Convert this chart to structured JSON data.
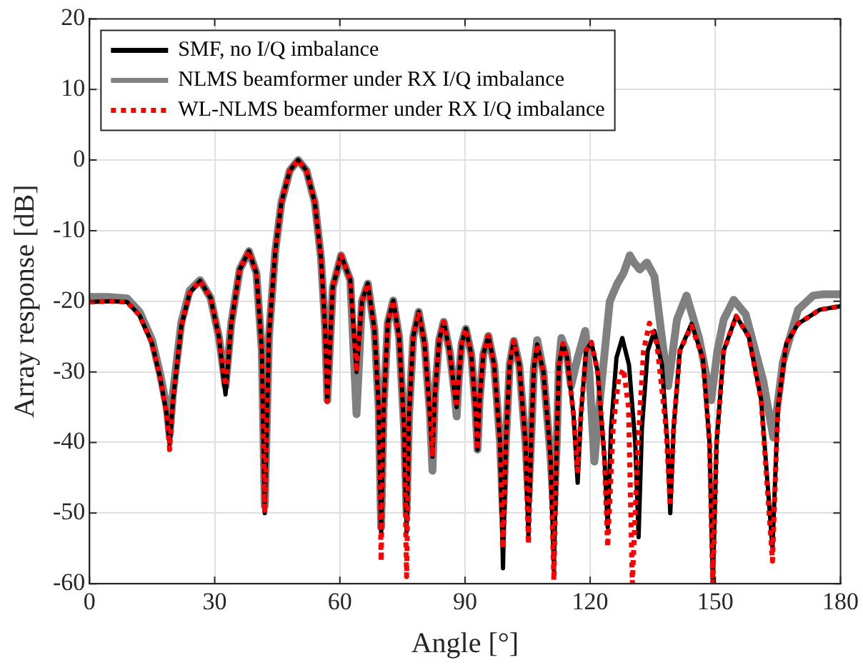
{
  "chart_data": {
    "type": "line",
    "xlabel": "Angle [°]",
    "ylabel": "Array response [dB]",
    "xlim": [
      0,
      180
    ],
    "xticks": [
      0,
      30,
      60,
      90,
      120,
      150,
      180
    ],
    "ylim": [
      -60,
      20
    ],
    "yticks": [
      -60,
      -50,
      -40,
      -30,
      -20,
      -10,
      0,
      10,
      20
    ],
    "grid": true,
    "legend": "top left",
    "marker": "none",
    "series": [
      {
        "name": "SMF, no I/Q imbalance",
        "color": "#000000",
        "line_style": "solid",
        "x": [
          0,
          5,
          9,
          12,
          15,
          17,
          18.5,
          19.2,
          20,
          22,
          24,
          26.5,
          29,
          31,
          32.6,
          34,
          36,
          38.2,
          40,
          41.3,
          42,
          43,
          44.5,
          46,
          48,
          50,
          52,
          54,
          55.5,
          56.5,
          57,
          58.3,
          60.3,
          62.5,
          64,
          65.3,
          66.7,
          68.3,
          69.3,
          69.9,
          70.5,
          71.5,
          72.8,
          74.2,
          75.4,
          76,
          76.6,
          77.6,
          78.9,
          80.3,
          81.6,
          82.2,
          82.8,
          83.8,
          84.9,
          86.3,
          87.5,
          88,
          88.5,
          89.2,
          90.2,
          91.5,
          92.5,
          93,
          93.5,
          94.4,
          95.6,
          97,
          98.4,
          99.1,
          99.8,
          100.7,
          101.7,
          103,
          104.5,
          105.2,
          105.9,
          106.5,
          107.3,
          108.8,
          110.5,
          111.3,
          112,
          112.5,
          113.5,
          114.5,
          116,
          117,
          117.8,
          119,
          120.3,
          121.8,
          123.4,
          124.2,
          125,
          126.3,
          127.7,
          129.3,
          130.8,
          131.6,
          132.4,
          133.8,
          135.4,
          137.2,
          138.5,
          139.2,
          140,
          141.5,
          144.3,
          147,
          148.6,
          149.4,
          150.3,
          152,
          155,
          158,
          161,
          163.7,
          165,
          167,
          169.8,
          175,
          180
        ],
        "values": [
          -20.1,
          -20,
          -20.1,
          -22,
          -26,
          -31,
          -36,
          -40.3,
          -34,
          -23.5,
          -18.8,
          -17.1,
          -19.5,
          -25,
          -33.2,
          -23,
          -15.5,
          -12.9,
          -16,
          -27,
          -50,
          -25,
          -13,
          -6,
          -1.5,
          0,
          -1.5,
          -6,
          -14,
          -24,
          -34.2,
          -18,
          -13.5,
          -17,
          -30,
          -20,
          -17.5,
          -24,
          -35,
          -52.8,
          -35,
          -23,
          -19.9,
          -25,
          -38,
          -52.7,
          -36,
          -25,
          -21.5,
          -26,
          -36,
          -42,
          -33,
          -25.5,
          -22.9,
          -27,
          -33,
          -35,
          -31,
          -26,
          -23.9,
          -27.5,
          -35,
          -41,
          -34,
          -27.5,
          -24.9,
          -29,
          -40,
          -57.8,
          -40,
          -29,
          -25.6,
          -29,
          -40,
          -53.4,
          -39,
          -29.5,
          -26.1,
          -30,
          -42,
          -58,
          -40,
          -29,
          -26,
          -28,
          -36,
          -45.7,
          -36,
          -27,
          -25.8,
          -30,
          -42,
          -52,
          -38,
          -28,
          -25.2,
          -29,
          -40,
          -53.4,
          -38,
          -27,
          -24.2,
          -29,
          -40,
          -50,
          -38,
          -27,
          -23.2,
          -28,
          -40,
          -60,
          -40,
          -27,
          -22.1,
          -25,
          -34,
          -55,
          -35,
          -26,
          -23.2,
          -21.2,
          -20.7
        ]
      },
      {
        "name": "NLMS beamformer under RX I/Q imbalance",
        "color": "#808080",
        "line_style": "solid",
        "x": [
          0,
          5,
          9,
          12,
          15,
          17,
          18.5,
          19.2,
          20,
          22,
          24,
          26.5,
          29,
          31,
          32.6,
          34,
          36,
          38.2,
          40,
          41.3,
          42,
          43,
          44.5,
          46,
          48,
          50,
          52,
          54,
          55.5,
          56.5,
          57,
          58.3,
          60.3,
          62.5,
          64,
          65.3,
          66.7,
          68.3,
          69.3,
          69.9,
          70.5,
          71.5,
          72.8,
          74.2,
          75.4,
          76,
          76.6,
          77.6,
          78.9,
          80.3,
          81.6,
          82.2,
          82.8,
          83.8,
          84.9,
          86.3,
          87.5,
          88,
          88.5,
          89.2,
          90.2,
          91.5,
          92.5,
          93,
          93.5,
          94.4,
          95.6,
          97,
          98.4,
          99.1,
          99.8,
          100.7,
          101.7,
          103,
          104.5,
          105.2,
          105.9,
          106.5,
          107.3,
          108.8,
          110.5,
          111.3,
          112,
          112.5,
          113.1,
          114.3,
          115.4,
          117,
          118.8,
          119.8,
          121,
          122,
          123,
          124.7,
          126.5,
          128,
          129.5,
          130.5,
          131.9,
          133.6,
          135.4,
          137.2,
          138.7,
          140.8,
          143.1,
          146.1,
          149,
          150.5,
          152,
          154.4,
          157.3,
          161.5,
          163.9,
          166.2,
          169.8,
          173.4,
          176,
          180
        ],
        "values": [
          -19.4,
          -19.4,
          -19.6,
          -21.5,
          -25.5,
          -30.5,
          -35,
          -39,
          -33,
          -23,
          -18.5,
          -17,
          -19.5,
          -25,
          -32,
          -23,
          -15.5,
          -12.9,
          -16,
          -27,
          -49,
          -25,
          -13,
          -6,
          -1.5,
          0,
          -1.5,
          -6,
          -14,
          -24,
          -34,
          -18,
          -13.5,
          -17,
          -36,
          -20,
          -17.5,
          -24,
          -35,
          -52,
          -35,
          -23,
          -19.9,
          -25,
          -38,
          -50,
          -36,
          -25,
          -21.5,
          -26,
          -36,
          -44,
          -33,
          -25.5,
          -22.9,
          -27,
          -33,
          -36.3,
          -31,
          -26,
          -23.9,
          -27.5,
          -35,
          -41,
          -34,
          -27.5,
          -24.9,
          -29,
          -40,
          -50,
          -40,
          -29,
          -25.6,
          -29,
          -40,
          -48,
          -39,
          -29.5,
          -25.5,
          -30,
          -42,
          -50,
          -40,
          -29,
          -25.2,
          -27,
          -32,
          -28,
          -24.2,
          -30,
          -42.7,
          -36,
          -30,
          -20,
          -17.5,
          -16,
          -13.5,
          -14.5,
          -15.5,
          -14.5,
          -16.5,
          -25.2,
          -32,
          -22.6,
          -19.2,
          -25.2,
          -34,
          -27,
          -22.6,
          -19.8,
          -21.9,
          -31.3,
          -39.3,
          -28.6,
          -21.2,
          -19.2,
          -19,
          -19
        ]
      },
      {
        "name": "WL-NLMS beamformer under RX I/Q imbalance",
        "color": "#ff0000",
        "line_style": "dotted",
        "x": [
          0,
          5,
          9,
          12,
          15,
          17,
          18.5,
          19.2,
          20,
          22,
          24,
          26.5,
          29,
          31,
          32.6,
          34,
          36,
          38.2,
          40,
          41.3,
          42,
          43,
          44.5,
          46,
          48,
          50,
          52,
          54,
          55.5,
          56.5,
          57,
          58.3,
          60.3,
          62.5,
          64,
          65.3,
          66.7,
          68.3,
          69.3,
          69.9,
          70.5,
          71.5,
          72.8,
          74.2,
          75.4,
          76,
          76.6,
          77.6,
          78.9,
          80.3,
          81.6,
          82.2,
          82.8,
          83.8,
          84.9,
          86.3,
          87.5,
          88,
          88.5,
          89.2,
          90.2,
          91.5,
          92.5,
          93,
          93.5,
          94.4,
          95.6,
          97,
          98.4,
          99.1,
          99.8,
          100.7,
          101.7,
          103,
          104.5,
          105.2,
          105.9,
          106.5,
          107.3,
          108.8,
          110.5,
          111.3,
          112,
          112.5,
          113.5,
          114.5,
          116,
          117,
          117.8,
          119,
          120.3,
          121.8,
          123.4,
          124.2,
          125.5,
          126.8,
          128,
          129.2,
          130.1,
          131.5,
          132.8,
          134.2,
          136,
          138.2,
          139.2,
          140,
          141.5,
          144.3,
          147,
          148.6,
          149.4,
          150.3,
          152,
          155,
          158,
          161,
          163.7,
          165,
          167,
          169.8,
          175,
          180
        ],
        "values": [
          -20.1,
          -20,
          -20.1,
          -22,
          -26,
          -31,
          -36,
          -41,
          -34,
          -23.5,
          -18.8,
          -17.1,
          -19.5,
          -25,
          -32,
          -23,
          -15.5,
          -12.9,
          -16,
          -27,
          -50,
          -25,
          -13,
          -6,
          -1.5,
          0,
          -1.5,
          -6,
          -14,
          -24,
          -34.2,
          -18,
          -13.5,
          -17,
          -30,
          -20,
          -17.5,
          -24,
          -35,
          -56.8,
          -35,
          -23,
          -19.9,
          -25,
          -38,
          -59,
          -36,
          -25,
          -21.5,
          -26,
          -36,
          -42,
          -33,
          -25.5,
          -22.9,
          -27,
          -33,
          -35,
          -31,
          -26,
          -23.9,
          -27.5,
          -35,
          -41,
          -34,
          -27.5,
          -24.9,
          -29,
          -40,
          -55,
          -40,
          -29,
          -25.6,
          -29,
          -40,
          -54.4,
          -39,
          -29.5,
          -26.1,
          -30,
          -42,
          -59.5,
          -40,
          -29,
          -26,
          -28,
          -36,
          -44,
          -36,
          -27,
          -25.8,
          -30,
          -42,
          -54.8,
          -38,
          -31,
          -29.6,
          -35,
          -60,
          -40,
          -27,
          -23.1,
          -26,
          -38,
          -49,
          -38,
          -27,
          -23.5,
          -28,
          -40,
          -60,
          -40,
          -27,
          -22.1,
          -25,
          -34,
          -56.8,
          -35,
          -26,
          -23.2,
          -21.2,
          -20.7
        ]
      }
    ]
  }
}
